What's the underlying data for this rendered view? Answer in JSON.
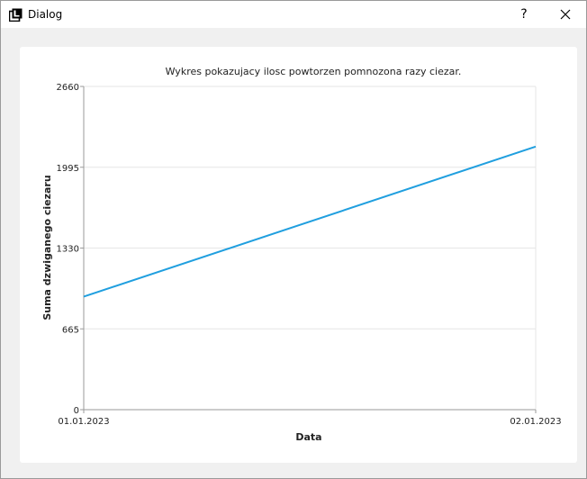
{
  "window": {
    "title": "Dialog",
    "help_label": "?",
    "icon": "app-icon",
    "close_icon": "close-icon"
  },
  "chart_data": {
    "type": "line",
    "title": "Wykres pokazujacy ilosc powtorzen pomnozona razy ciezar.",
    "xlabel": "Data",
    "ylabel": "Suma dzwiganego ciezaru",
    "categories": [
      "01.01.2023",
      "02.01.2023"
    ],
    "series": [
      {
        "values": [
          930,
          2165
        ],
        "color": "#209fdf"
      }
    ],
    "ylim": [
      0,
      2660
    ],
    "yticks": [
      "0",
      "665",
      "1330",
      "1995",
      "2660"
    ],
    "grid": true,
    "legend": "none"
  }
}
